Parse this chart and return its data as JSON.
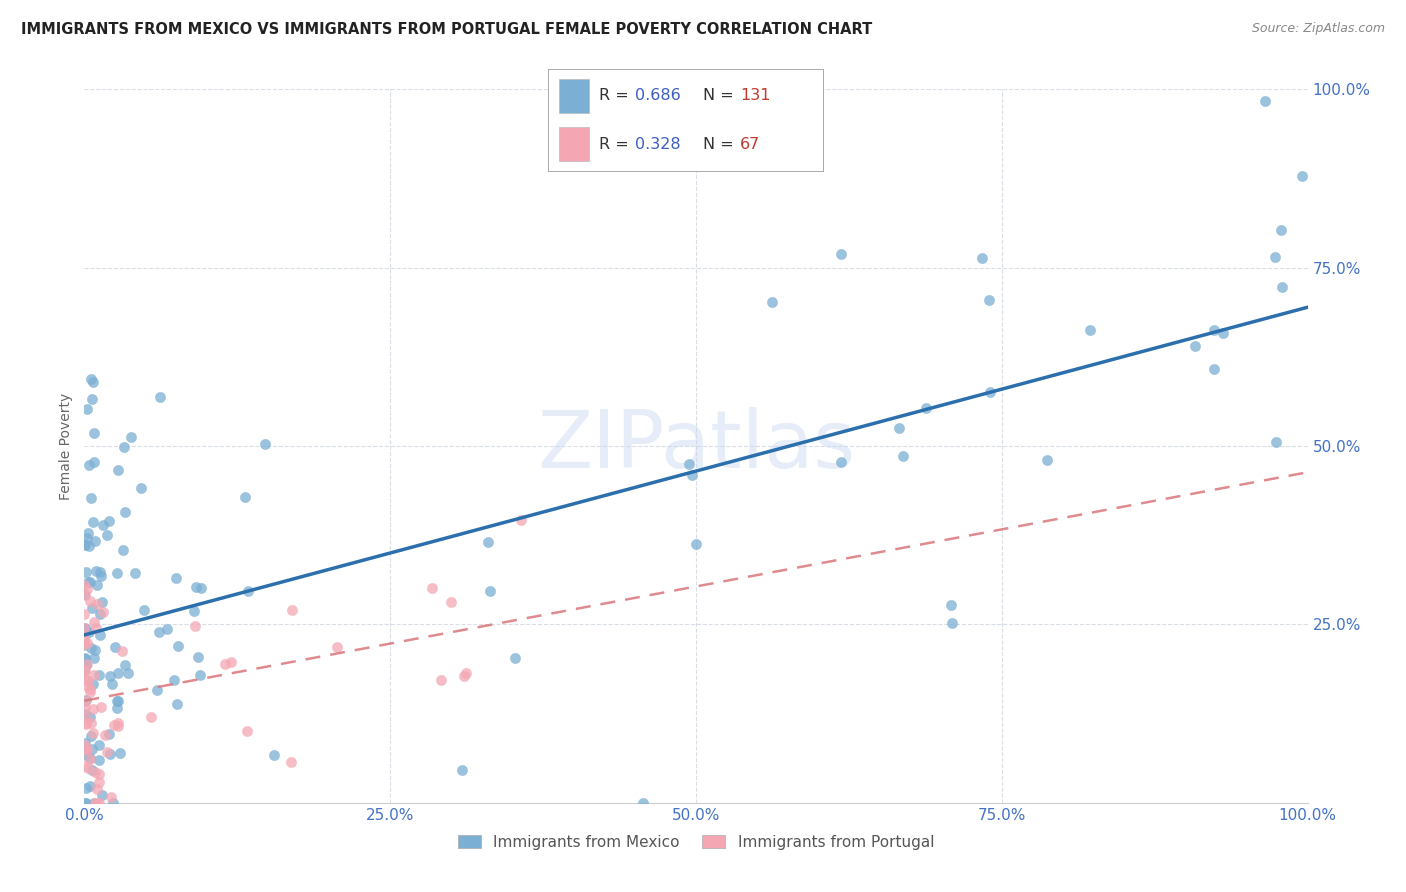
{
  "title": "IMMIGRANTS FROM MEXICO VS IMMIGRANTS FROM PORTUGAL FEMALE POVERTY CORRELATION CHART",
  "source": "Source: ZipAtlas.com",
  "ylabel": "Female Poverty",
  "xlim": [
    0.0,
    1.0
  ],
  "ylim": [
    0.0,
    1.0
  ],
  "xticks": [
    0.0,
    0.25,
    0.5,
    0.75,
    1.0
  ],
  "yticks": [
    0.0,
    0.25,
    0.5,
    0.75,
    1.0
  ],
  "xticklabels": [
    "0.0%",
    "25.0%",
    "50.0%",
    "75.0%",
    "100.0%"
  ],
  "yticklabels": [
    "",
    "25.0%",
    "50.0%",
    "75.0%",
    "100.0%"
  ],
  "mexico_color": "#7bafd4",
  "portugal_color": "#f4a7b3",
  "mexico_edge": "#5a8fbf",
  "portugal_edge": "#e07a8a",
  "line_mexico_color": "#2c6fad",
  "line_portugal_color": "#d9767a",
  "mexico_R": 0.686,
  "mexico_N": 131,
  "portugal_R": 0.328,
  "portugal_N": 67,
  "legend_R_color": "#3b5fc0",
  "legend_N_color": "#c0392b",
  "watermark": "ZIPatlas",
  "background_color": "#ffffff",
  "grid_color": "#d8dde6",
  "title_color": "#222222",
  "source_color": "#888888",
  "tick_color": "#4472c4",
  "ylabel_color": "#666666",
  "seed_mexico": 42,
  "seed_portugal": 99
}
